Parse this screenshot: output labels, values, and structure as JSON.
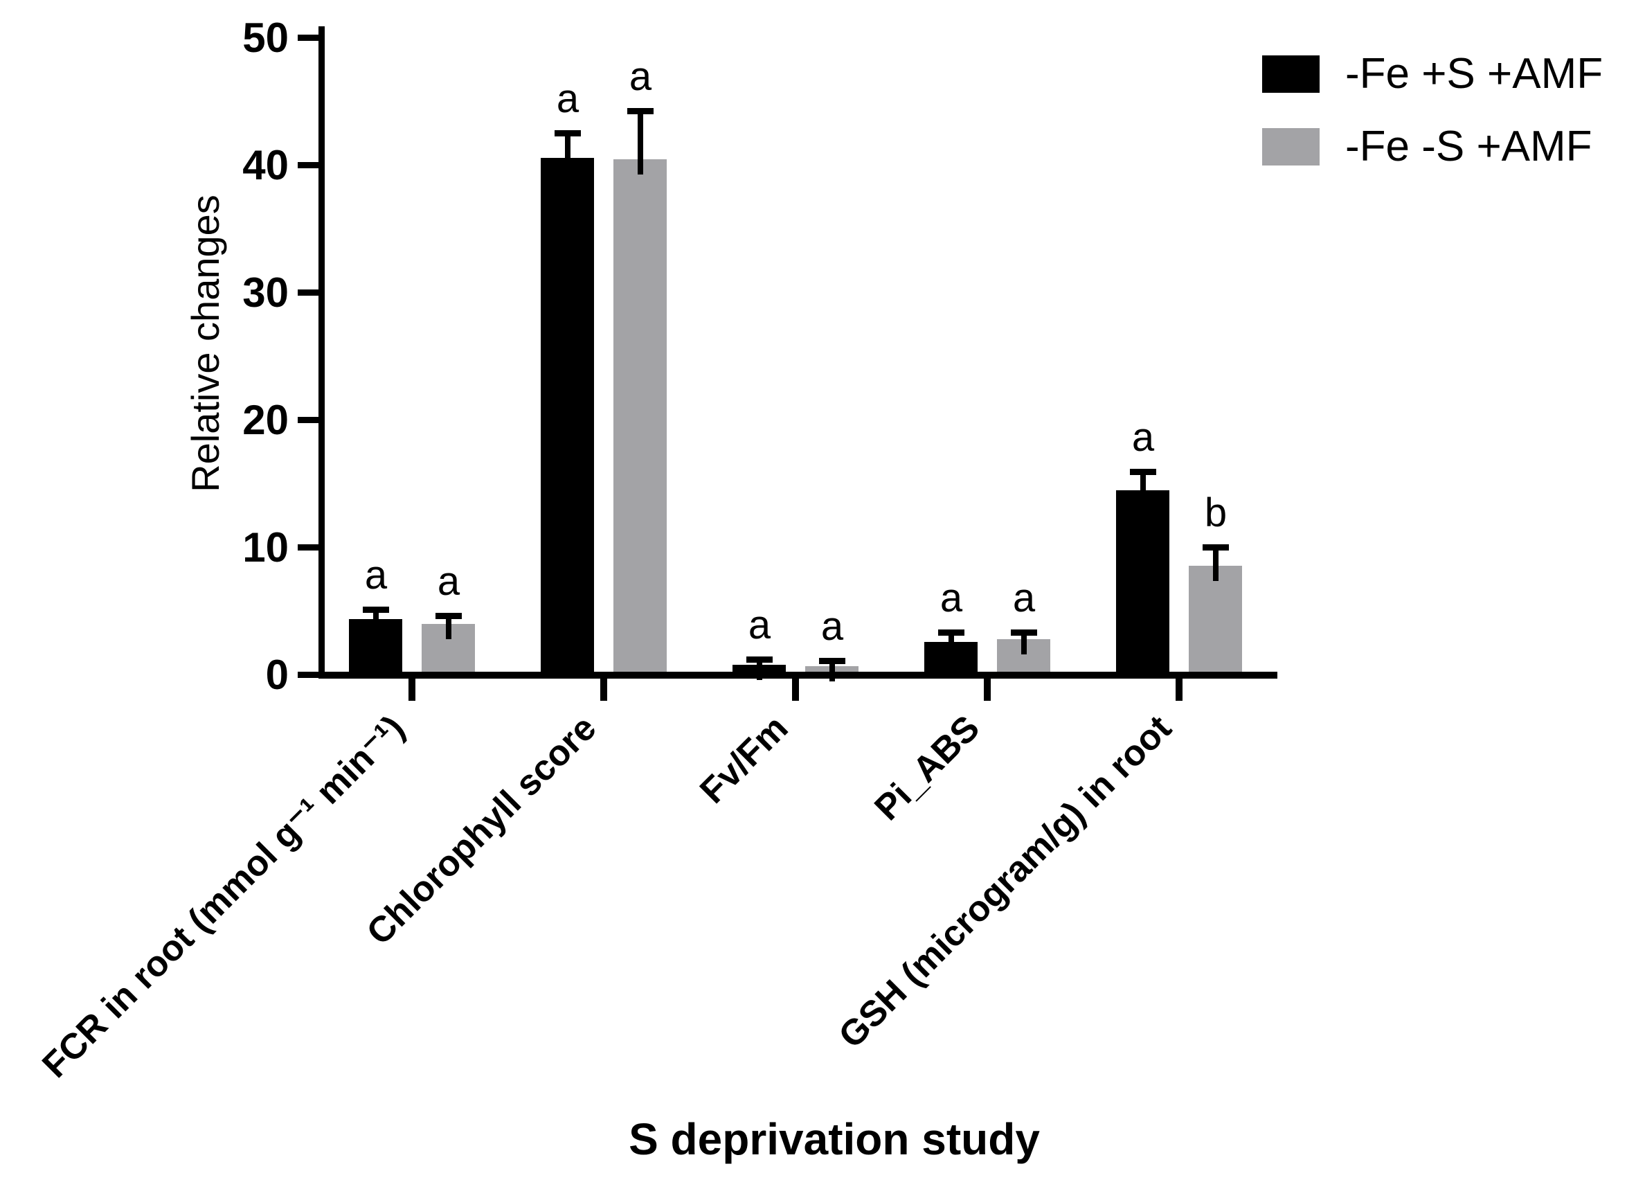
{
  "chart_data": {
    "type": "bar",
    "title": "",
    "xlabel": "S deprivation study",
    "ylabel": "Relative changes",
    "ylim": [
      0,
      50
    ],
    "yticks": [
      0,
      10,
      20,
      30,
      40,
      50
    ],
    "grid": false,
    "legend_position": "top-right",
    "error_bars": "upper, SE caps, letters denote significance groups",
    "categories": [
      "FCR in root (mmol g⁻¹ min⁻¹)",
      "Chlorophyll score",
      "Fv/Fm",
      "Pi_ABS",
      "GSH (microgram/g) in root"
    ],
    "series": [
      {
        "name": "-Fe +S +AMF",
        "color": "#000000",
        "values": [
          4.4,
          40.6,
          0.8,
          2.6,
          14.5
        ],
        "errors": [
          0.5,
          1.7,
          0.2,
          0.5,
          1.2
        ],
        "sig_letters": [
          "a",
          "a",
          "a",
          "a",
          "a"
        ]
      },
      {
        "name": "-Fe -S +AMF",
        "color": "#a3a3a6",
        "values": [
          4.0,
          40.5,
          0.7,
          2.8,
          8.6
        ],
        "errors": [
          0.4,
          3.5,
          0.15,
          0.3,
          1.2
        ],
        "sig_letters": [
          "a",
          "a",
          "a",
          "a",
          "b"
        ]
      }
    ]
  }
}
